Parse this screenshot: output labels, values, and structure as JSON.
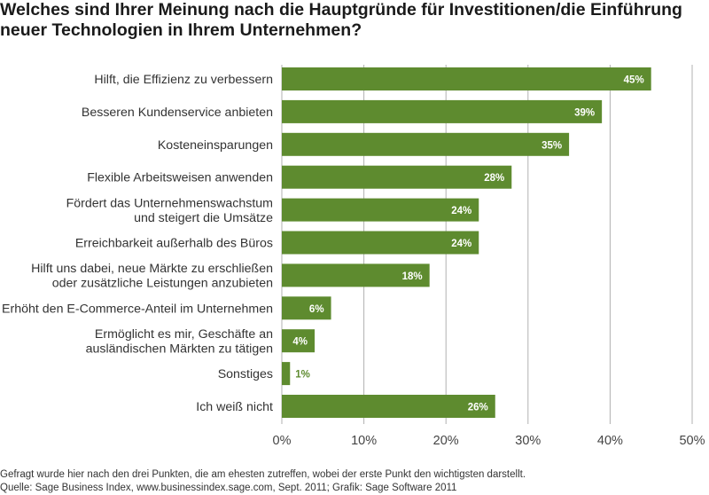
{
  "title_line1": "Welches sind Ihrer Meinung nach die Hauptgründe für Investitionen/die Einführung",
  "title_line2": "neuer Technologien in Ihrem Unternehmen?",
  "footer": {
    "note": "Gefragt wurde hier nach den drei Punkten, die am ehesten zutreffen, wobei der erste Punkt den wichtigsten darstellt.",
    "source": "Quelle: Sage Business Index, www.businessindex.sage.com, Sept. 2011; Grafik: Sage Software 2011"
  },
  "colors": {
    "bar": "#5e8b2f",
    "label_inside": "#ffffff",
    "label_outside": "#5e8b2f",
    "grid": "#b0b0b0"
  },
  "chart_data": {
    "type": "bar",
    "orientation": "horizontal",
    "title": "Welches sind Ihrer Meinung nach die Hauptgründe für Investitionen/die Einführung neuer Technologien in Ihrem Unternehmen?",
    "xlabel": "",
    "ylabel": "",
    "xlim": [
      0,
      50
    ],
    "xticks": [
      "0%",
      "10%",
      "20%",
      "30%",
      "40%",
      "50%"
    ],
    "grid": true,
    "categories": [
      [
        "Hilft, die Effizienz zu verbessern"
      ],
      [
        "Besseren Kundenservice anbieten"
      ],
      [
        "Kosteneinsparungen"
      ],
      [
        "Flexible Arbeitsweisen anwenden"
      ],
      [
        "Fördert das Unternehmenswachstum",
        "und steigert die Umsätze"
      ],
      [
        "Erreichbarkeit außerhalb des Büros"
      ],
      [
        "Hilft uns dabei, neue Märkte zu erschließen",
        "oder zusätzliche Leistungen anzubieten"
      ],
      [
        "Erhöht den E-Commerce-Anteil im Unternehmen"
      ],
      [
        "Ermöglicht es mir, Geschäfte an",
        "ausländischen Märkten zu tätigen"
      ],
      [
        "Sonstiges"
      ],
      [
        "Ich weiß nicht"
      ]
    ],
    "values": [
      45,
      39,
      35,
      28,
      24,
      24,
      18,
      6,
      4,
      1,
      26
    ],
    "value_labels": [
      "45%",
      "39%",
      "35%",
      "28%",
      "24%",
      "24%",
      "18%",
      "6%",
      "4%",
      "1%",
      "26%"
    ]
  }
}
